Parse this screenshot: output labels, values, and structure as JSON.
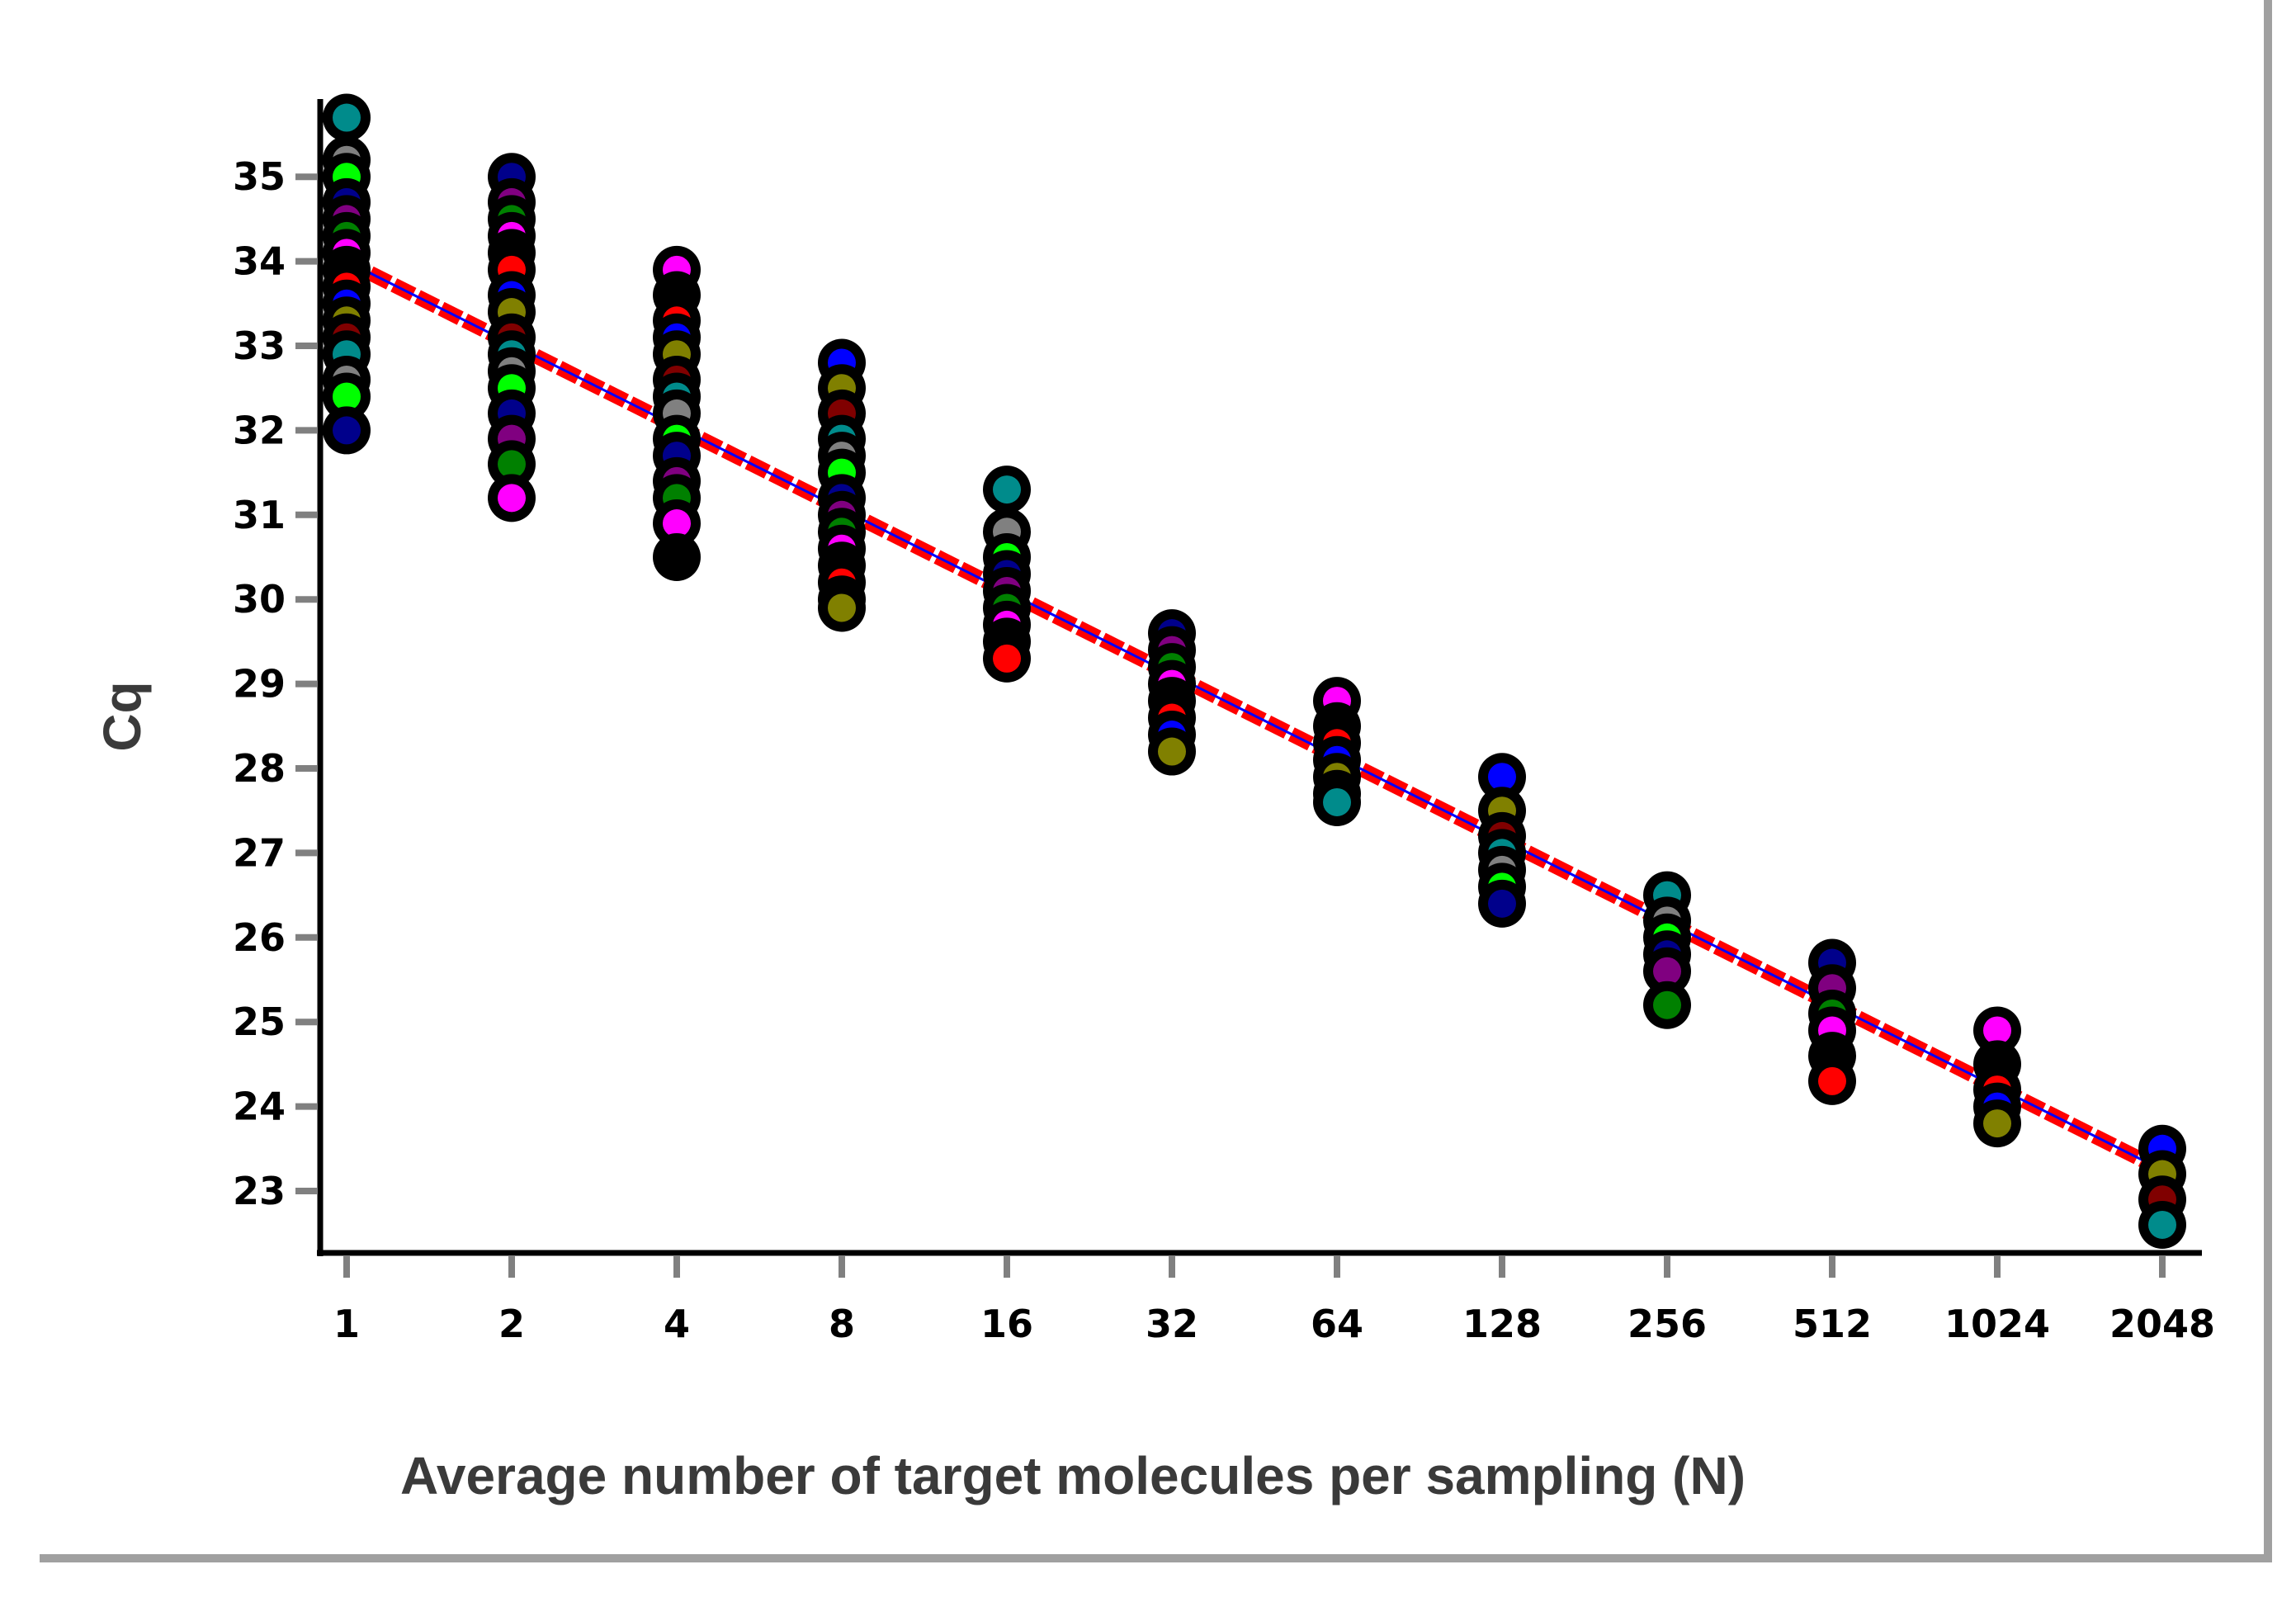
{
  "chart_data": {
    "type": "scatter",
    "title": "",
    "xlabel": "Average number of target molecules per sampling (N)",
    "ylabel": "Cq",
    "x_scale": "log2",
    "x_categories": [
      1,
      2,
      4,
      8,
      16,
      32,
      64,
      128,
      256,
      512,
      1024,
      2048
    ],
    "x_tick_labels": [
      "1",
      "2",
      "4",
      "8",
      "16",
      "32",
      "64",
      "128",
      "256",
      "512",
      "1024",
      "2048"
    ],
    "yticks": [
      23,
      24,
      25,
      26,
      27,
      28,
      29,
      30,
      31,
      32,
      33,
      34,
      35
    ],
    "y_tick_labels": [
      "23",
      "24",
      "25",
      "26",
      "27",
      "28",
      "29",
      "30",
      "31",
      "32",
      "33",
      "34",
      "35"
    ],
    "ylim": [
      22.2,
      36.0
    ],
    "grid": false,
    "legend": "none",
    "marker_colors": [
      "#008b8b",
      "#008000",
      "#808000",
      "#00008b",
      "#ff0000",
      "#808080",
      "#ff00ff",
      "#800000",
      "#800080",
      "#0000ff",
      "#00ff00",
      "#000000"
    ],
    "points": [
      {
        "x": 1,
        "ys": [
          35.7,
          35.2,
          35.0,
          34.7,
          34.5,
          34.3,
          34.1,
          33.9,
          33.7,
          33.5,
          33.3,
          33.1,
          32.9,
          32.6,
          32.4,
          32.0
        ]
      },
      {
        "x": 2,
        "ys": [
          35.0,
          34.7,
          34.5,
          34.3,
          34.1,
          33.9,
          33.6,
          33.4,
          33.1,
          32.9,
          32.7,
          32.5,
          32.2,
          31.9,
          31.6,
          31.2
        ]
      },
      {
        "x": 4,
        "ys": [
          33.9,
          33.6,
          33.3,
          33.1,
          32.9,
          32.6,
          32.4,
          32.2,
          31.9,
          31.7,
          31.4,
          31.2,
          30.9,
          30.5
        ]
      },
      {
        "x": 8,
        "ys": [
          32.8,
          32.5,
          32.2,
          31.9,
          31.7,
          31.5,
          31.2,
          31.0,
          30.8,
          30.6,
          30.4,
          30.2,
          30.0,
          29.9
        ]
      },
      {
        "x": 16,
        "ys": [
          31.3,
          30.8,
          30.5,
          30.3,
          30.1,
          29.9,
          29.7,
          29.5,
          29.3
        ]
      },
      {
        "x": 32,
        "ys": [
          29.6,
          29.4,
          29.2,
          29.0,
          28.8,
          28.6,
          28.4,
          28.2
        ]
      },
      {
        "x": 64,
        "ys": [
          28.8,
          28.5,
          28.3,
          28.1,
          27.9,
          27.7,
          27.6
        ]
      },
      {
        "x": 128,
        "ys": [
          27.9,
          27.5,
          27.2,
          27.0,
          26.8,
          26.6,
          26.4
        ]
      },
      {
        "x": 256,
        "ys": [
          26.5,
          26.2,
          26.0,
          25.8,
          25.6,
          25.2
        ]
      },
      {
        "x": 512,
        "ys": [
          25.7,
          25.4,
          25.1,
          24.9,
          24.6,
          24.3
        ]
      },
      {
        "x": 1024,
        "ys": [
          24.9,
          24.5,
          24.2,
          24.0,
          23.8
        ]
      },
      {
        "x": 2048,
        "ys": [
          23.5,
          23.2,
          22.9,
          22.6
        ]
      }
    ],
    "fit_line": {
      "x": [
        1,
        2048
      ],
      "y": [
        34.0,
        23.2
      ],
      "color": "#ff0000",
      "inner_color": "#0000ff"
    }
  }
}
